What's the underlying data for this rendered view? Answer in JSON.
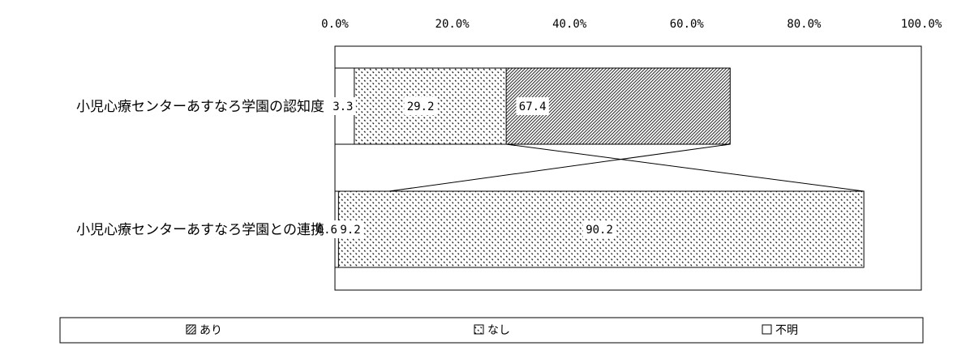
{
  "chart_data": {
    "type": "bar",
    "orientation": "horizontal",
    "stacked": "percent",
    "categories": [
      "小児心療センターあすなろ学園の認知度",
      "小児心療センターあすなろ学園との連携"
    ],
    "series": [
      {
        "name": "あり",
        "values": [
          67.4,
          9.2
        ],
        "pattern": "diagonal-hatch",
        "color": "#555555"
      },
      {
        "name": "なし",
        "values": [
          29.2,
          90.2
        ],
        "pattern": "dots",
        "color": "#333333"
      },
      {
        "name": "不明",
        "values": [
          3.3,
          0.6
        ],
        "pattern": "none",
        "color": "#ffffff"
      }
    ],
    "data_labels": [
      [
        "67.4",
        "29.2",
        "3.3"
      ],
      [
        "9.2",
        "90.2",
        "0.6"
      ]
    ],
    "x_ticks": [
      "0.0%",
      "20.0%",
      "40.0%",
      "60.0%",
      "80.0%",
      "100.0%"
    ],
    "xlim": [
      0,
      100
    ],
    "axis_position": "top",
    "series_lines": true,
    "grid": false,
    "legend_position": "bottom"
  }
}
